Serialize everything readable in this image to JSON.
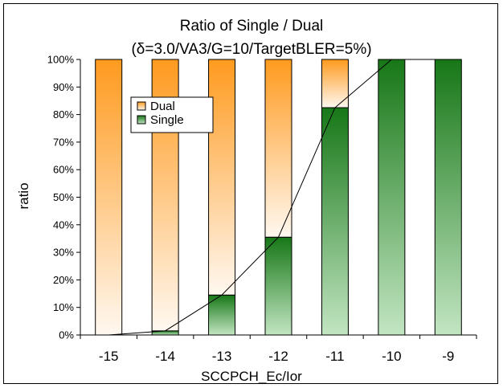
{
  "colors": {
    "dual_dark": "#ff9a1e",
    "dual_light": "#fff8f0",
    "single_dark": "#177717",
    "single_light": "#c2e5c2",
    "line": "#000000"
  },
  "chart_data": {
    "type": "bar",
    "stacked": true,
    "title": "Ratio of Single / Dual",
    "subtitle": "(δ=3.0/VA3/G=10/TargetBLER=5%)",
    "xlabel": "SCCPCH_Ec/Ior",
    "ylabel": "ratio",
    "categories": [
      "-15",
      "-14",
      "-13",
      "-12",
      "-11",
      "-10",
      "-9"
    ],
    "series": [
      {
        "name": "Single",
        "values": [
          0,
          1.5,
          14.5,
          35.5,
          82.5,
          100,
          100
        ]
      },
      {
        "name": "Dual",
        "values": [
          100,
          98.5,
          85.5,
          64.5,
          17.5,
          0,
          0
        ]
      }
    ],
    "line_overlay": {
      "series": "Single",
      "values": [
        0,
        1.5,
        14.5,
        35.5,
        82.5,
        100,
        100
      ]
    },
    "ylim": [
      0,
      100
    ],
    "yticks": [
      "0%",
      "10%",
      "20%",
      "30%",
      "40%",
      "50%",
      "60%",
      "70%",
      "80%",
      "90%",
      "100%"
    ],
    "legend": {
      "placement": "top-left",
      "items": [
        "Dual",
        "Single"
      ]
    },
    "grid": false
  }
}
